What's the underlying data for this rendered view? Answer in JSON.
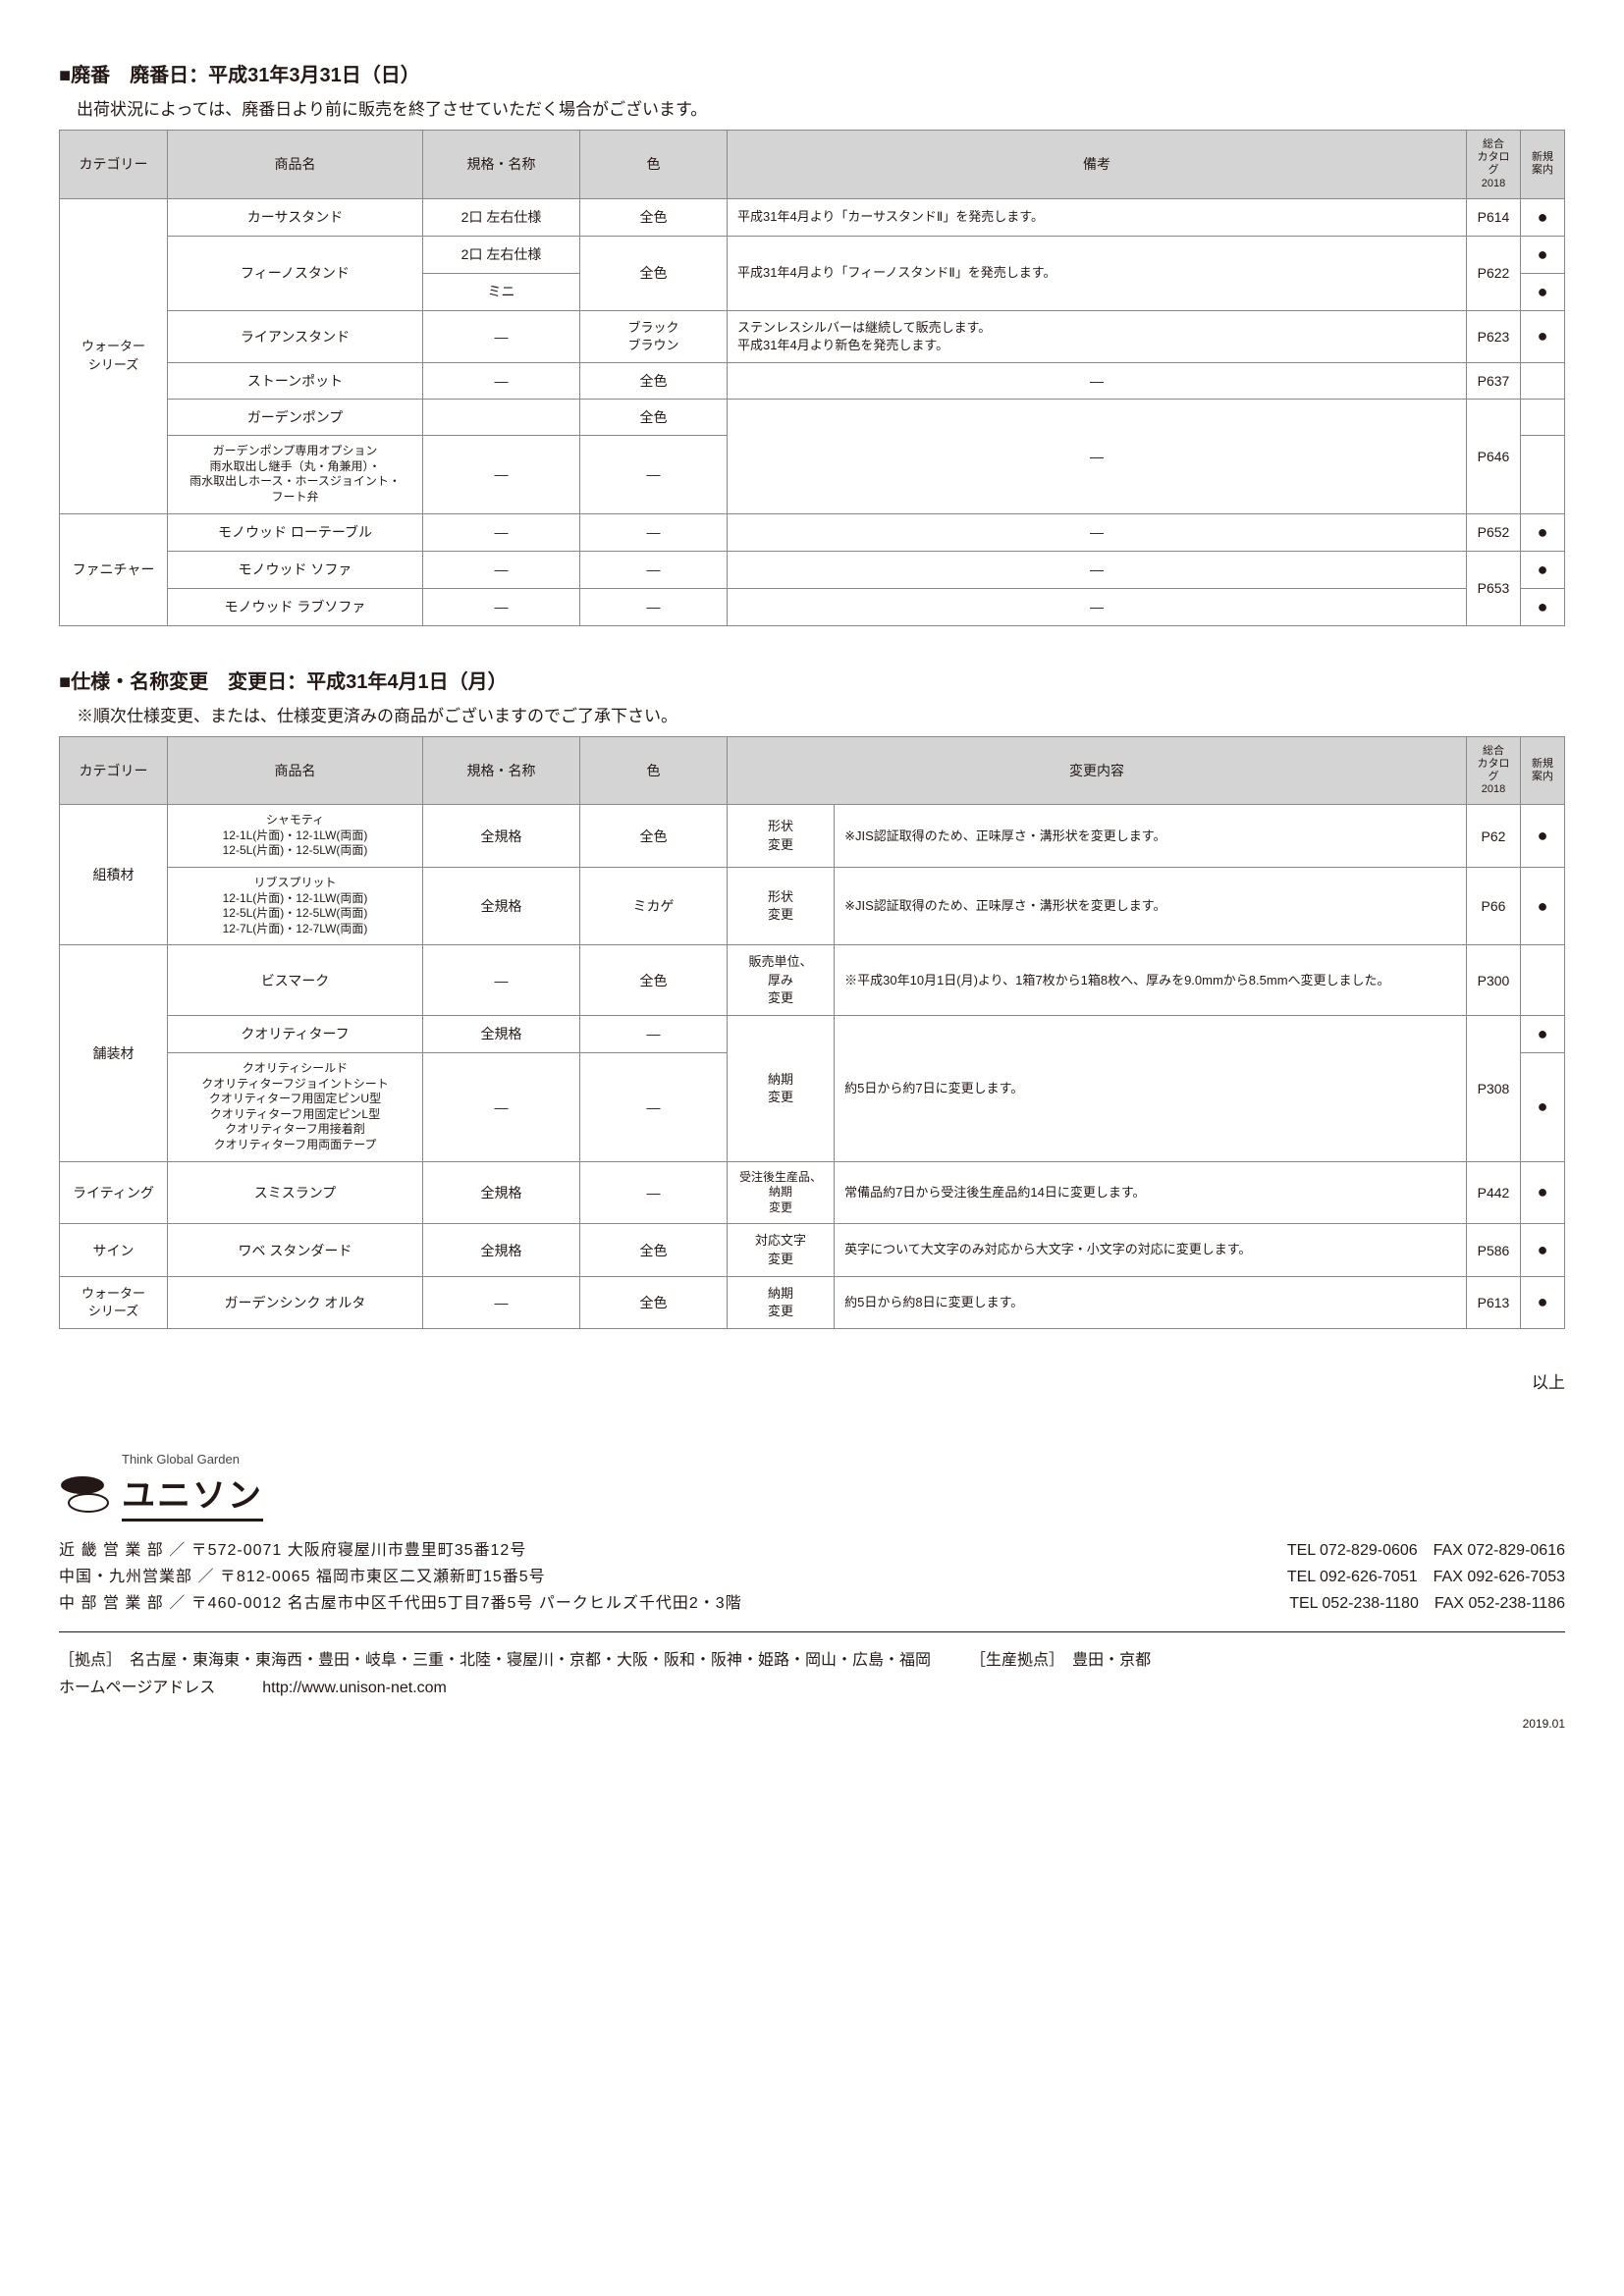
{
  "section1": {
    "title": "■廃番　廃番日：平成31年3月31日（日）",
    "note": "出荷状況によっては、廃番日より前に販売を終了させていただく場合がございます。",
    "headers": [
      "カテゴリー",
      "商品名",
      "規格・名称",
      "色",
      "備考",
      "総合\nカタログ\n2018",
      "新規\n案内"
    ],
    "rows": [
      {
        "cat": "ウォーター\nシリーズ",
        "cat_rowspan": 7
      },
      {
        "name": "カーサスタンド",
        "spec": "2口 左右仕様",
        "color": "全色",
        "note": "平成31年4月より「カーサスタンドⅡ」を発売します。",
        "page": "P614",
        "new": "●"
      },
      {
        "name": "フィーノスタンド",
        "name_rowspan": 2,
        "spec": "2口 左右仕様",
        "color": "全色",
        "color_rowspan": 2,
        "note": "平成31年4月より「フィーノスタンドⅡ」を発売します。",
        "note_rowspan": 2,
        "page": "P622",
        "page_rowspan": 2,
        "new": "●"
      },
      {
        "spec": "ミニ",
        "new": "●"
      },
      {
        "name": "ライアンスタンド",
        "spec": "―",
        "color": "ブラック\nブラウン",
        "note": "ステンレスシルバーは継続して販売します。\n平成31年4月より新色を発売します。",
        "page": "P623",
        "new": "●"
      },
      {
        "name": "ストーンポット",
        "spec": "―",
        "color": "全色",
        "note": "―",
        "page": "P637",
        "new": ""
      },
      {
        "name": "ガーデンポンプ",
        "spec": "",
        "color": "全色",
        "note": "",
        "note_rowspan": 2,
        "page": "P646",
        "page_rowspan": 2,
        "new": ""
      },
      {
        "name": "ガーデンポンプ専用オプション\n雨水取出し継手（丸・角兼用）・\n雨水取出しホース・ホースジョイント・\nフート弁",
        "spec": "―",
        "color": "―",
        "new": ""
      },
      {
        "cat": "ファニチャー",
        "cat_rowspan": 3
      },
      {
        "name": "モノウッド ローテーブル",
        "spec": "―",
        "color": "―",
        "note": "―",
        "page": "P652",
        "new": "●"
      },
      {
        "name": "モノウッド ソファ",
        "spec": "―",
        "color": "―",
        "note": "―",
        "page": "P653",
        "page_rowspan": 2,
        "new": "●"
      },
      {
        "name": "モノウッド ラブソファ",
        "spec": "―",
        "color": "―",
        "note": "―",
        "new": "●"
      }
    ]
  },
  "section2": {
    "title": "■仕様・名称変更　変更日：平成31年4月1日（月）",
    "note": "※順次仕様変更、または、仕様変更済みの商品がございますのでご了承下さい。",
    "headers": [
      "カテゴリー",
      "商品名",
      "規格・名称",
      "色",
      "変更内容",
      "総合\nカタログ\n2018",
      "新規\n案内"
    ],
    "rows": [
      {
        "cat": "組積材",
        "cat_rowspan": 2,
        "name": "シャモティ\n12-1L(片面)・12-1LW(両面)\n12-5L(片面)・12-5LW(両面)",
        "spec": "全規格",
        "color": "全色",
        "ctype": "形状\n変更",
        "cnote": "※JIS認証取得のため、正味厚さ・溝形状を変更します。",
        "page": "P62",
        "new": "●"
      },
      {
        "name": "リブスプリット\n12-1L(片面)・12-1LW(両面)\n12-5L(片面)・12-5LW(両面)\n12-7L(片面)・12-7LW(両面)",
        "spec": "全規格",
        "color": "ミカゲ",
        "ctype": "形状\n変更",
        "cnote": "※JIS認証取得のため、正味厚さ・溝形状を変更します。",
        "page": "P66",
        "new": "●"
      },
      {
        "cat": "舗装材",
        "cat_rowspan": 3,
        "name": "ビスマーク",
        "spec": "―",
        "color": "全色",
        "ctype": "販売単位、\n厚み\n変更",
        "cnote": "※平成30年10月1日(月)より、1箱7枚から1箱8枚へ、厚みを9.0mmから8.5mmへ変更しました。",
        "page": "P300",
        "new": ""
      },
      {
        "name": "クオリティターフ",
        "spec": "全規格",
        "color": "―",
        "ctype": "納期\n変更",
        "ctype_rowspan": 2,
        "cnote": "約5日から約7日に変更します。",
        "cnote_rowspan": 2,
        "page": "P308",
        "page_rowspan": 2,
        "new": "●"
      },
      {
        "name": "クオリティシールド\nクオリティターフジョイントシート\nクオリティターフ用固定ピンU型\nクオリティターフ用固定ピンL型\nクオリティターフ用接着剤\nクオリティターフ用両面テープ",
        "spec": "―",
        "color": "―",
        "new": "●"
      },
      {
        "cat": "ライティング",
        "name": "スミスランプ",
        "spec": "全規格",
        "color": "―",
        "ctype": "受注後生産品、\n納期\n変更",
        "cnote": "常備品約7日から受注後生産品約14日に変更します。",
        "page": "P442",
        "new": "●"
      },
      {
        "cat": "サイン",
        "name": "ワベ スタンダード",
        "spec": "全規格",
        "color": "全色",
        "ctype": "対応文字\n変更",
        "cnote": "英字について大文字のみ対応から大文字・小文字の対応に変更します。",
        "page": "P586",
        "new": "●"
      },
      {
        "cat": "ウォーター\nシリーズ",
        "name": "ガーデンシンク オルタ",
        "spec": "―",
        "color": "全色",
        "ctype": "納期\n変更",
        "cnote": "約5日から約8日に変更します。",
        "page": "P613",
        "new": "●"
      }
    ]
  },
  "ijou": "以上",
  "footer": {
    "tagline": "Think Global Garden",
    "brand": "ユニソン",
    "offices": [
      {
        "left": "近 畿 営 業 部 ／ 〒572-0071 大阪府寝屋川市豊里町35番12号",
        "right": "TEL 072-829-0606　FAX 072-829-0616"
      },
      {
        "left": "中国・九州営業部 ／ 〒812-0065 福岡市東区二又瀬新町15番5号",
        "right": "TEL 092-626-7051　FAX 092-626-7053"
      },
      {
        "left": "中 部 営 業 部 ／ 〒460-0012 名古屋市中区千代田5丁目7番5号 パークヒルズ千代田2・3階",
        "right": "TEL 052-238-1180　FAX 052-238-1186"
      }
    ],
    "bases_label": "［拠点］",
    "bases": "名古屋・東海東・東海西・豊田・岐阜・三重・北陸・寝屋川・京都・大阪・阪和・阪神・姫路・岡山・広島・福岡",
    "prod_label": "［生産拠点］",
    "prod": "豊田・京都",
    "homepage_label": "ホームページアドレス",
    "homepage_url": "http://www.unison-net.com",
    "date": "2019.01"
  }
}
